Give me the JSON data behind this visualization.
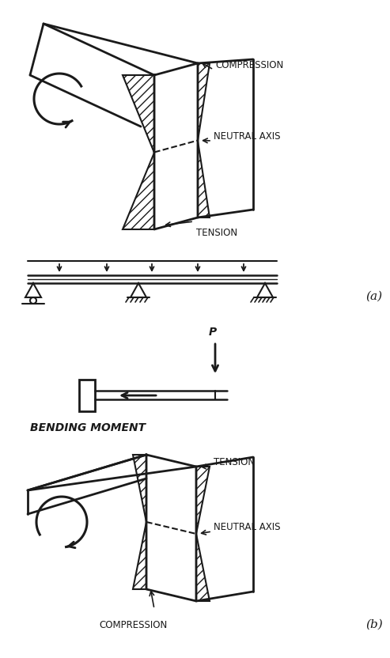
{
  "fig_width": 4.93,
  "fig_height": 8.32,
  "bg_color": "#ffffff",
  "line_color": "#1a1a1a",
  "label_a": "(a)",
  "label_b": "(b)",
  "text_compression_top": "COMPRESSION",
  "text_neutral_axis_top": "NEUTRAL AXIS",
  "text_tension_top": "TENSION",
  "text_tension_bot": "TENSION",
  "text_neutral_axis_bot": "NEUTRAL AXIS",
  "text_compression_bot": "COMPRESSION",
  "text_bending_moment": "BENDING MOMENT",
  "text_P": "P"
}
